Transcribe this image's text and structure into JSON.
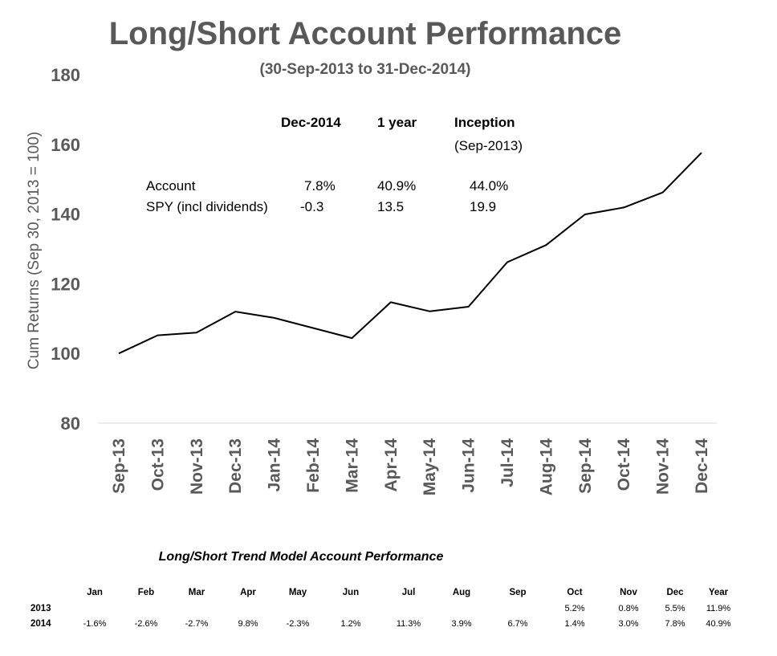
{
  "chart_data": {
    "type": "line",
    "title": "Long/Short Account Performance",
    "subtitle": "(30-Sep-2013  to 31-Dec-2014)",
    "ylabel": "Cum Returns (Sep 30, 2013 = 100)",
    "xlabel": "",
    "ylim": [
      80,
      180
    ],
    "yticks": [
      80,
      100,
      120,
      140,
      160,
      180
    ],
    "categories": [
      "Sep-13",
      "Oct-13",
      "Nov-13",
      "Dec-13",
      "Jan-14",
      "Feb-14",
      "Mar-14",
      "Apr-14",
      "May-14",
      "Jun-14",
      "Jul-14",
      "Aug-14",
      "Sep-14",
      "Oct-14",
      "Nov-14",
      "Dec-14"
    ],
    "series": [
      {
        "values": [
          100,
          105.2,
          106.0,
          112.0,
          110.2,
          107.3,
          104.4,
          114.7,
          112.1,
          113.4,
          126.2,
          131.1,
          139.9,
          141.9,
          146.2,
          157.6
        ]
      }
    ],
    "line_color": "#000000",
    "grid": false
  },
  "summary": {
    "headers": [
      "Dec-2014",
      "1 year",
      "Inception"
    ],
    "inception_note": "(Sep-2013)",
    "rows": [
      {
        "label": "Account",
        "values": [
          "7.8%",
          "40.9%",
          "44.0%"
        ]
      },
      {
        "label": "SPY (incl dividends)",
        "values": [
          "-0.3",
          "13.5",
          "19.9"
        ]
      }
    ]
  },
  "monthly": {
    "title": "Long/Short Trend Model Account Performance",
    "columns": [
      "Jan",
      "Feb",
      "Mar",
      "Apr",
      "May",
      "Jun",
      "Jul",
      "Aug",
      "Sep",
      "Oct",
      "Nov",
      "Dec",
      "Year"
    ],
    "rows": [
      {
        "year": "2013",
        "values": [
          "",
          "",
          "",
          "",
          "",
          "",
          "",
          "",
          "",
          "5.2%",
          "0.8%",
          "5.5%",
          "11.9%"
        ]
      },
      {
        "year": "2014",
        "values": [
          "-1.6%",
          "-2.6%",
          "-2.7%",
          "9.8%",
          "-2.3%",
          "1.2%",
          "11.3%",
          "3.9%",
          "6.7%",
          "1.4%",
          "3.0%",
          "7.8%",
          "40.9%"
        ]
      }
    ]
  }
}
